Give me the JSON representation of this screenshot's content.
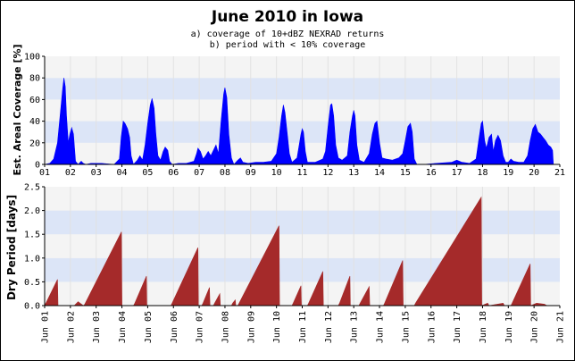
{
  "chart_data": [
    {
      "type": "area",
      "title": "June 2010 in Iowa",
      "subtitle_lines": [
        "a) coverage of 10+dBZ NEXRAD returns",
        "b) period with < 10% coverage"
      ],
      "ylabel": "Est. Areal Coverage [%]",
      "ylim": [
        0,
        100
      ],
      "yticks": [
        0,
        20,
        40,
        60,
        80,
        100
      ],
      "xlim": [
        1,
        21
      ],
      "color": "#0000ff",
      "grid": "alternating horizontal bands",
      "series": [
        {
          "points": [
            [
              1.0,
              0
            ],
            [
              1.2,
              1
            ],
            [
              1.35,
              5
            ],
            [
              1.5,
              20
            ],
            [
              1.6,
              45
            ],
            [
              1.7,
              70
            ],
            [
              1.75,
              80
            ],
            [
              1.8,
              72
            ],
            [
              1.85,
              45
            ],
            [
              1.92,
              20
            ],
            [
              1.98,
              28
            ],
            [
              2.05,
              34
            ],
            [
              2.12,
              28
            ],
            [
              2.2,
              3
            ],
            [
              2.3,
              0
            ],
            [
              2.42,
              3
            ],
            [
              2.5,
              1
            ],
            [
              2.6,
              0
            ],
            [
              2.8,
              1
            ],
            [
              3.2,
              1
            ],
            [
              3.7,
              0
            ],
            [
              3.9,
              5
            ],
            [
              3.97,
              25
            ],
            [
              4.05,
              40
            ],
            [
              4.12,
              38
            ],
            [
              4.22,
              33
            ],
            [
              4.3,
              25
            ],
            [
              4.36,
              8
            ],
            [
              4.45,
              0
            ],
            [
              4.6,
              4
            ],
            [
              4.7,
              8
            ],
            [
              4.8,
              4
            ],
            [
              4.9,
              18
            ],
            [
              5.0,
              38
            ],
            [
              5.1,
              55
            ],
            [
              5.17,
              61
            ],
            [
              5.25,
              52
            ],
            [
              5.32,
              28
            ],
            [
              5.4,
              8
            ],
            [
              5.5,
              4
            ],
            [
              5.6,
              12
            ],
            [
              5.68,
              16
            ],
            [
              5.78,
              13
            ],
            [
              5.85,
              3
            ],
            [
              5.95,
              0
            ],
            [
              6.2,
              1
            ],
            [
              6.5,
              1
            ],
            [
              6.8,
              3
            ],
            [
              6.9,
              10
            ],
            [
              6.95,
              15
            ],
            [
              7.05,
              12
            ],
            [
              7.15,
              5
            ],
            [
              7.25,
              8
            ],
            [
              7.35,
              12
            ],
            [
              7.45,
              8
            ],
            [
              7.55,
              13
            ],
            [
              7.65,
              18
            ],
            [
              7.75,
              10
            ],
            [
              7.85,
              40
            ],
            [
              7.95,
              65
            ],
            [
              8.0,
              71
            ],
            [
              8.07,
              62
            ],
            [
              8.15,
              28
            ],
            [
              8.25,
              6
            ],
            [
              8.35,
              0
            ],
            [
              8.5,
              4
            ],
            [
              8.6,
              6
            ],
            [
              8.7,
              2
            ],
            [
              8.9,
              1
            ],
            [
              9.2,
              2
            ],
            [
              9.5,
              2
            ],
            [
              9.8,
              3
            ],
            [
              10.0,
              10
            ],
            [
              10.1,
              25
            ],
            [
              10.2,
              45
            ],
            [
              10.27,
              55
            ],
            [
              10.33,
              48
            ],
            [
              10.42,
              28
            ],
            [
              10.5,
              10
            ],
            [
              10.6,
              2
            ],
            [
              10.8,
              6
            ],
            [
              10.95,
              28
            ],
            [
              11.0,
              33
            ],
            [
              11.05,
              30
            ],
            [
              11.12,
              12
            ],
            [
              11.2,
              2
            ],
            [
              11.5,
              2
            ],
            [
              11.8,
              5
            ],
            [
              11.9,
              12
            ],
            [
              12.0,
              35
            ],
            [
              12.1,
              55
            ],
            [
              12.15,
              56
            ],
            [
              12.22,
              45
            ],
            [
              12.3,
              18
            ],
            [
              12.4,
              6
            ],
            [
              12.55,
              4
            ],
            [
              12.75,
              8
            ],
            [
              12.85,
              30
            ],
            [
              12.95,
              45
            ],
            [
              13.0,
              50
            ],
            [
              13.05,
              45
            ],
            [
              13.12,
              18
            ],
            [
              13.22,
              4
            ],
            [
              13.4,
              2
            ],
            [
              13.6,
              10
            ],
            [
              13.72,
              28
            ],
            [
              13.82,
              38
            ],
            [
              13.9,
              40
            ],
            [
              14.0,
              20
            ],
            [
              14.1,
              6
            ],
            [
              14.25,
              5
            ],
            [
              14.5,
              4
            ],
            [
              14.75,
              6
            ],
            [
              14.9,
              10
            ],
            [
              15.0,
              22
            ],
            [
              15.1,
              35
            ],
            [
              15.2,
              38
            ],
            [
              15.27,
              30
            ],
            [
              15.35,
              5
            ],
            [
              15.45,
              0
            ],
            [
              15.7,
              0
            ],
            [
              16.2,
              1
            ],
            [
              16.8,
              2
            ],
            [
              17.0,
              4
            ],
            [
              17.2,
              2
            ],
            [
              17.5,
              1
            ],
            [
              17.75,
              5
            ],
            [
              17.85,
              22
            ],
            [
              17.95,
              38
            ],
            [
              18.0,
              40
            ],
            [
              18.08,
              22
            ],
            [
              18.15,
              15
            ],
            [
              18.25,
              25
            ],
            [
              18.35,
              28
            ],
            [
              18.42,
              12
            ],
            [
              18.5,
              22
            ],
            [
              18.6,
              27
            ],
            [
              18.7,
              22
            ],
            [
              18.8,
              8
            ],
            [
              18.9,
              2
            ],
            [
              19.0,
              2
            ],
            [
              19.1,
              5
            ],
            [
              19.2,
              3
            ],
            [
              19.4,
              2
            ],
            [
              19.6,
              2
            ],
            [
              19.75,
              8
            ],
            [
              19.85,
              22
            ],
            [
              19.95,
              33
            ],
            [
              20.05,
              37
            ],
            [
              20.15,
              30
            ],
            [
              20.25,
              28
            ],
            [
              20.35,
              25
            ],
            [
              20.45,
              22
            ],
            [
              20.55,
              18
            ],
            [
              20.65,
              16
            ],
            [
              20.72,
              13
            ],
            [
              20.75,
              0
            ]
          ]
        }
      ]
    },
    {
      "type": "area",
      "ylabel": "Dry Period [days]",
      "ylim": [
        0,
        2.5
      ],
      "yticks": [
        "0.0",
        "0.5",
        "1.0",
        "1.5",
        "2.0",
        "2.5"
      ],
      "xlim": [
        1,
        21
      ],
      "color": "#a52a2a",
      "grid": "alternating horizontal bands",
      "x_tick_labels": [
        "Jun 01",
        "Jun 02",
        "Jun 03",
        "Jun 04",
        "Jun 05",
        "Jun 06",
        "Jun 07",
        "Jun 08",
        "Jun 09",
        "Jun 10",
        "Jun 11",
        "Jun 12",
        "Jun 13",
        "Jun 14",
        "Jun 15",
        "Jun 16",
        "Jun 17",
        "Jun 18",
        "Jun 19",
        "Jun 20",
        "Jun 21"
      ],
      "series": [
        {
          "points": [
            [
              1.0,
              0.02
            ],
            [
              1.05,
              0.05
            ],
            [
              1.5,
              0.55
            ],
            [
              1.52,
              0
            ],
            [
              2.15,
              0
            ],
            [
              2.3,
              0.08
            ],
            [
              2.5,
              0
            ],
            [
              2.55,
              0.02
            ],
            [
              3.98,
              1.55
            ],
            [
              4.0,
              0
            ],
            [
              4.45,
              0
            ],
            [
              4.5,
              0.05
            ],
            [
              4.95,
              0.62
            ],
            [
              4.97,
              0
            ],
            [
              5.9,
              0
            ],
            [
              5.95,
              0.05
            ],
            [
              6.95,
              1.22
            ],
            [
              6.97,
              0
            ],
            [
              7.1,
              0
            ],
            [
              7.15,
              0.05
            ],
            [
              7.4,
              0.38
            ],
            [
              7.42,
              0
            ],
            [
              7.55,
              0
            ],
            [
              7.6,
              0.05
            ],
            [
              7.8,
              0.25
            ],
            [
              7.82,
              0
            ],
            [
              8.25,
              0
            ],
            [
              8.3,
              0.05
            ],
            [
              8.4,
              0.12
            ],
            [
              8.42,
              0
            ],
            [
              8.5,
              0
            ],
            [
              8.55,
              0.05
            ],
            [
              10.1,
              1.68
            ],
            [
              10.12,
              0
            ],
            [
              10.6,
              0
            ],
            [
              10.65,
              0.05
            ],
            [
              10.95,
              0.42
            ],
            [
              10.97,
              0
            ],
            [
              11.2,
              0
            ],
            [
              11.25,
              0.05
            ],
            [
              11.8,
              0.72
            ],
            [
              11.82,
              0
            ],
            [
              12.4,
              0
            ],
            [
              12.45,
              0.05
            ],
            [
              12.85,
              0.62
            ],
            [
              12.87,
              0
            ],
            [
              13.2,
              0
            ],
            [
              13.25,
              0.05
            ],
            [
              13.6,
              0.4
            ],
            [
              13.62,
              0
            ],
            [
              14.15,
              0
            ],
            [
              14.2,
              0.05
            ],
            [
              14.9,
              0.95
            ],
            [
              14.92,
              0
            ],
            [
              15.35,
              0
            ],
            [
              15.4,
              0.05
            ],
            [
              17.95,
              2.28
            ],
            [
              17.97,
              0
            ],
            [
              18.2,
              0.05
            ],
            [
              18.25,
              0
            ],
            [
              18.8,
              0.05
            ],
            [
              18.85,
              0
            ],
            [
              19.1,
              0
            ],
            [
              19.15,
              0.05
            ],
            [
              19.85,
              0.88
            ],
            [
              19.87,
              0
            ],
            [
              20.1,
              0.05
            ],
            [
              20.4,
              0.03
            ],
            [
              20.5,
              0
            ],
            [
              21.0,
              0
            ]
          ]
        }
      ]
    }
  ]
}
